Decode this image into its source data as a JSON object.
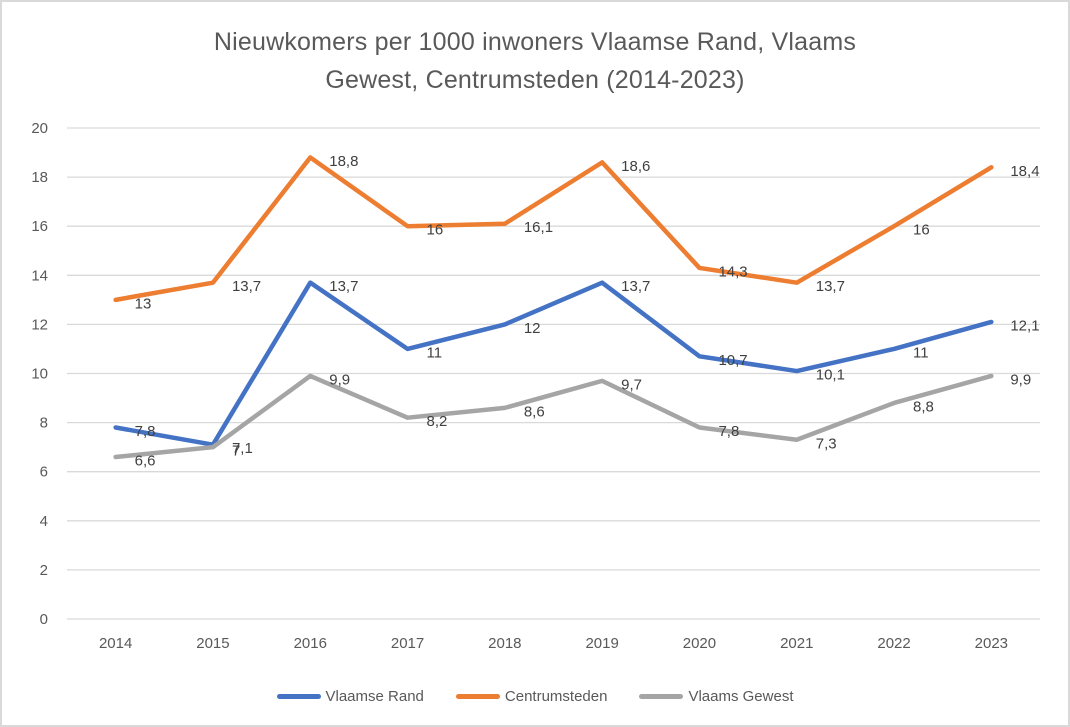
{
  "frame": {
    "background": "#FFFFFF",
    "border_color": "#D9D9D9"
  },
  "chart_data": {
    "type": "line",
    "title": "Nieuwkomers per 1000 inwoners Vlaamse Rand, Vlaams Gewest, Centrumsteden (2014-2023)",
    "title_lines": [
      "Nieuwkomers per 1000 inwoners Vlaamse Rand, Vlaams",
      "Gewest, Centrumsteden (2014-2023)"
    ],
    "categories": [
      "2014",
      "2015",
      "2016",
      "2017",
      "2018",
      "2019",
      "2020",
      "2021",
      "2022",
      "2023"
    ],
    "series": [
      {
        "name": "Vlaamse Rand",
        "color": "#4472C4",
        "values": [
          7.8,
          7.1,
          13.7,
          11,
          12,
          13.7,
          10.7,
          10.1,
          11,
          12.1
        ],
        "labels": [
          "7,8",
          "7,1",
          "13,7",
          "11",
          "12",
          "13,7",
          "10,7",
          "10,1",
          "11",
          "12,1"
        ]
      },
      {
        "name": "Centrumsteden",
        "color": "#ED7D31",
        "values": [
          13,
          13.7,
          18.8,
          16,
          16.1,
          18.6,
          14.3,
          13.7,
          16,
          18.4
        ],
        "labels": [
          "13",
          "13,7",
          "18,8",
          "16",
          "16,1",
          "18,6",
          "14,3",
          "13,7",
          "16",
          "18,4"
        ]
      },
      {
        "name": "Vlaams Gewest",
        "color": "#A5A5A5",
        "values": [
          6.6,
          7,
          9.9,
          8.2,
          8.6,
          9.7,
          7.8,
          7.3,
          8.8,
          9.9
        ],
        "labels": [
          "6,6",
          "7",
          "9,9",
          "8,2",
          "8,6",
          "9,7",
          "7,8",
          "7,3",
          "8,8",
          "9,9"
        ]
      }
    ],
    "y_axis": {
      "min": 0,
      "max": 20,
      "step": 2,
      "tick_labels": [
        "0",
        "2",
        "4",
        "6",
        "8",
        "10",
        "12",
        "14",
        "16",
        "18",
        "20"
      ]
    },
    "x_axis": {
      "tick_labels": [
        "2014",
        "2015",
        "2016",
        "2017",
        "2018",
        "2019",
        "2020",
        "2021",
        "2022",
        "2023"
      ]
    },
    "grid": true,
    "legend_position": "bottom",
    "style": {
      "grid_color": "#D9D9D9",
      "axis_text_color": "#595959",
      "data_label_color": "#404040",
      "title_color": "#595959",
      "legend_text_color": "#595959"
    }
  }
}
